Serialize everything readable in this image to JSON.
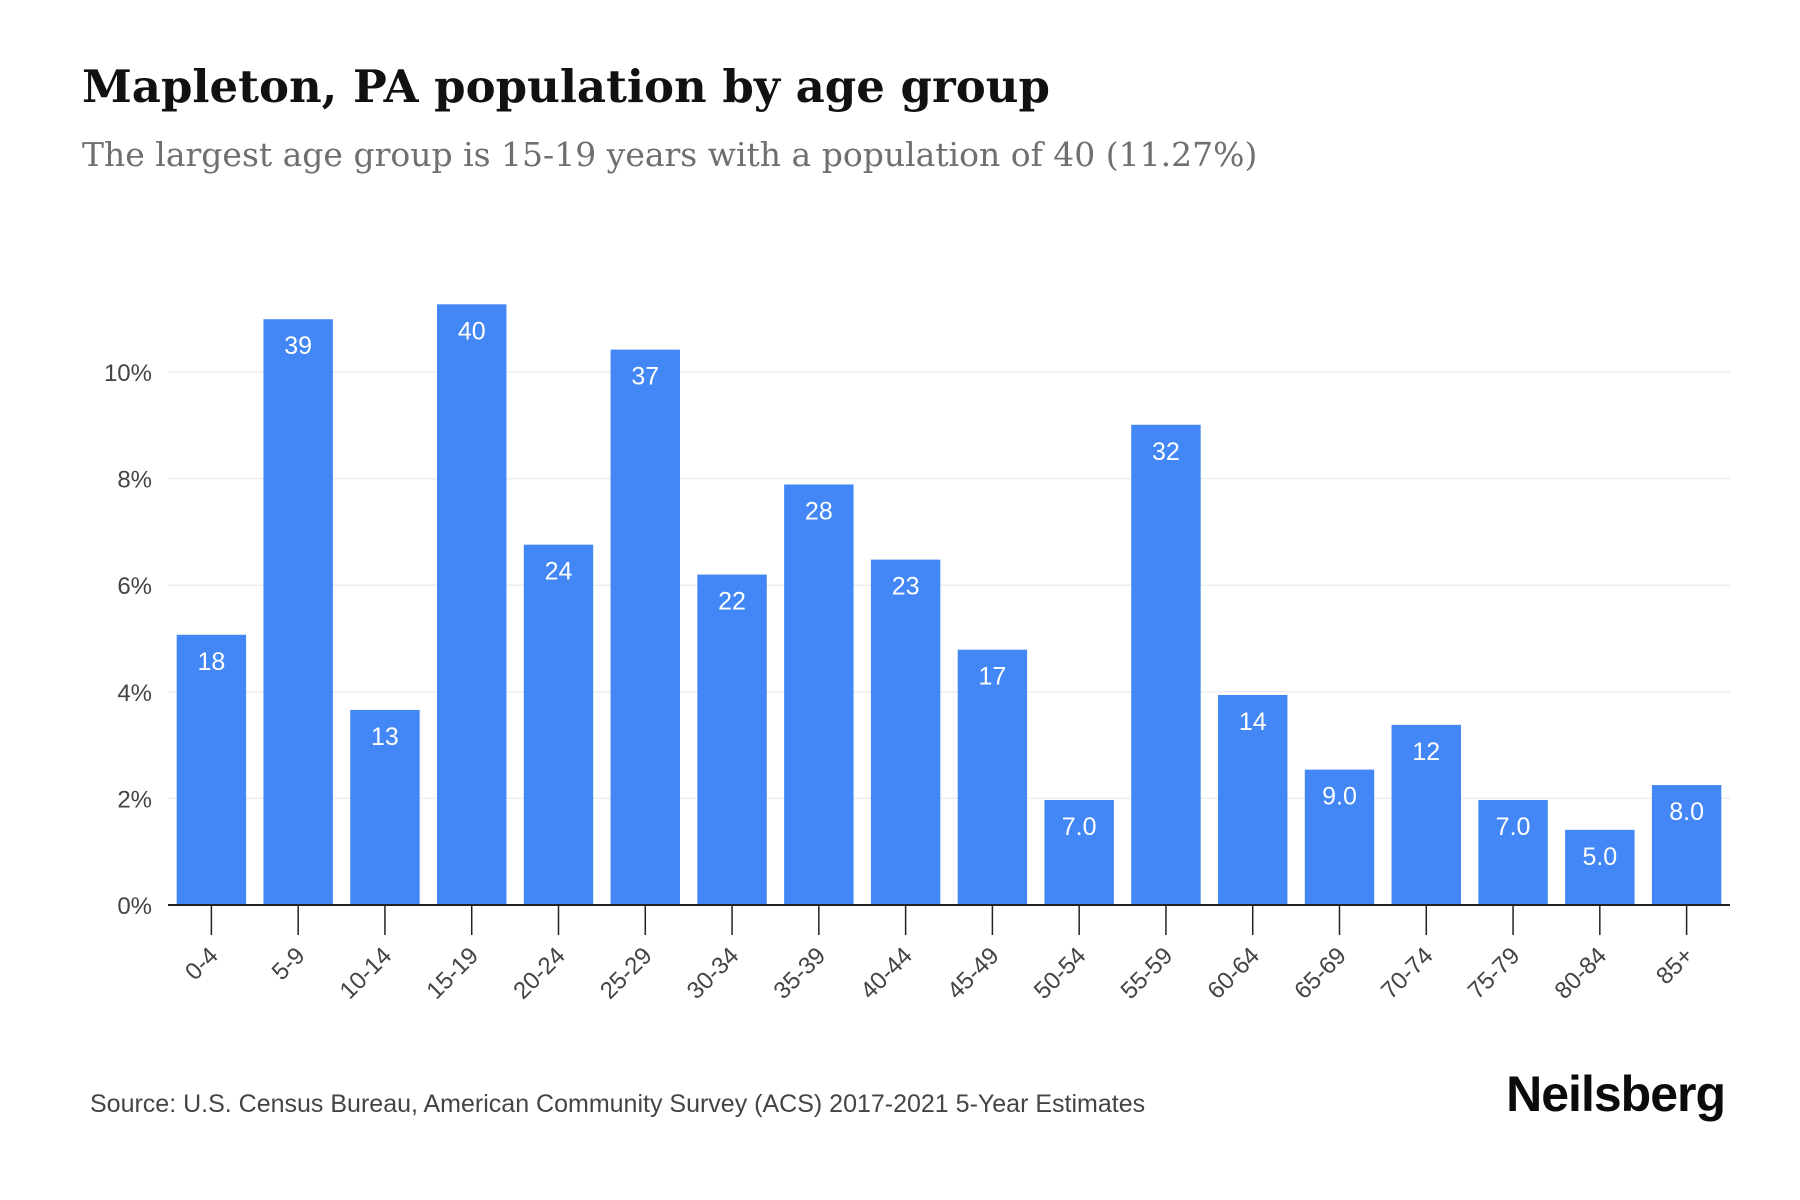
{
  "title": "Mapleton, PA population by age group",
  "subtitle": "The largest age group is 15-19 years with a population of 40 (11.27%)",
  "source": "Source: U.S. Census Bureau, American Community Survey (ACS) 2017-2021 5-Year Estimates",
  "brand": "Neilsberg",
  "colors": {
    "bar": "#4287f5",
    "bar_label": "#ffffff",
    "grid": "#eeeeee",
    "axis": "#222222",
    "tick_text": "#444444"
  },
  "chart_data": {
    "type": "bar",
    "categories": [
      "0-4",
      "5-9",
      "10-14",
      "15-19",
      "20-24",
      "25-29",
      "30-34",
      "35-39",
      "40-44",
      "45-49",
      "50-54",
      "55-59",
      "60-64",
      "65-69",
      "70-74",
      "75-79",
      "80-84",
      "85+"
    ],
    "values": [
      5.07,
      10.99,
      3.66,
      11.27,
      6.76,
      10.42,
      6.2,
      7.89,
      6.48,
      4.79,
      1.97,
      9.01,
      3.94,
      2.54,
      3.38,
      1.97,
      1.41,
      2.25
    ],
    "data_labels": [
      "18",
      "39",
      "13",
      "40",
      "24",
      "37",
      "22",
      "28",
      "23",
      "17",
      "7.0",
      "32",
      "14",
      "9.0",
      "12",
      "7.0",
      "5.0",
      "8.0"
    ],
    "y_ticks": [
      "0%",
      "2%",
      "4%",
      "6%",
      "8%",
      "10%"
    ],
    "y_tick_values": [
      0,
      2,
      4,
      6,
      8,
      10
    ],
    "ylim": [
      0,
      12
    ],
    "xlabel": "",
    "ylabel": "",
    "grid": true,
    "legend": "none"
  }
}
